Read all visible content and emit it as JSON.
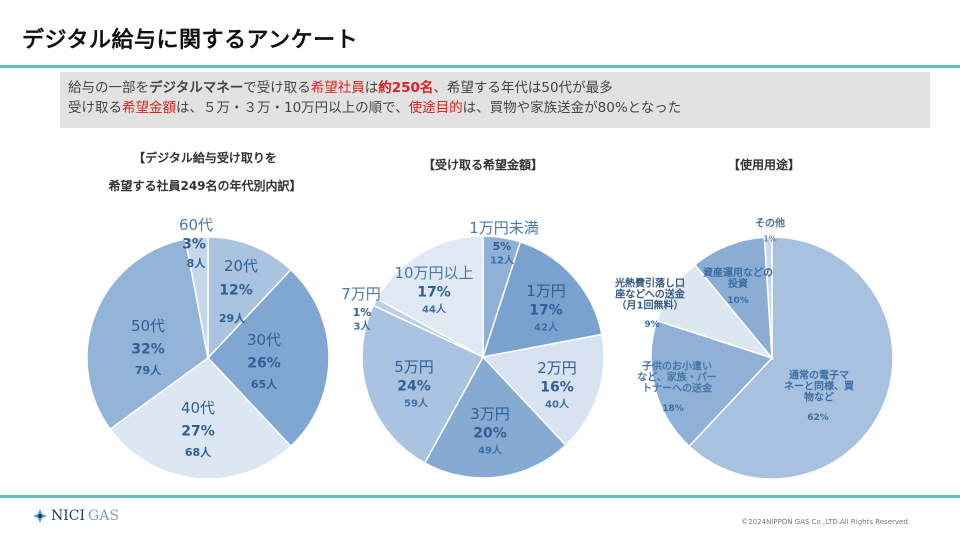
{
  "header": {
    "title": "デジタル給与に関するアンケート"
  },
  "summary": {
    "line1": [
      {
        "text": "給与の一部を",
        "style": ""
      },
      {
        "text": "デジタルマネー",
        "style": "bold"
      },
      {
        "text": "で受け取る",
        "style": ""
      },
      {
        "text": "希望社員",
        "style": "red"
      },
      {
        "text": "は",
        "style": ""
      },
      {
        "text": "約250名",
        "style": "red bold"
      },
      {
        "text": "、希望する年代は50代が最多",
        "style": ""
      }
    ],
    "line2": [
      {
        "text": "受け取る",
        "style": ""
      },
      {
        "text": "希望金額",
        "style": "red"
      },
      {
        "text": "は、５万・３万・10万円以上の順で、",
        "style": ""
      },
      {
        "text": "使途目的",
        "style": "red"
      },
      {
        "text": "は、買物や家族送金が80%となった",
        "style": ""
      }
    ]
  },
  "chart_data": [
    {
      "type": "pie",
      "title": [
        "【デジタル給与受け取りを",
        "希望する社員249名の年代別内訳】"
      ],
      "count_unit": "人",
      "slices": [
        {
          "label": "20代",
          "percent": 12,
          "count": 29,
          "color": "#a9c3e0"
        },
        {
          "label": "30代",
          "percent": 26,
          "count": 65,
          "color": "#80a7d1"
        },
        {
          "label": "40代",
          "percent": 27,
          "count": 68,
          "color": "#dce7f3"
        },
        {
          "label": "50代",
          "percent": 32,
          "count": 79,
          "color": "#93b4d9"
        },
        {
          "label": "60代",
          "percent": 3,
          "count": 8,
          "color": "#c6d7ea"
        }
      ]
    },
    {
      "type": "pie",
      "title": [
        "【受け取る希望金額】"
      ],
      "count_unit": "人",
      "slices": [
        {
          "label": "1万円未満",
          "percent": 5,
          "count": 12,
          "color": "#8fb1d7"
        },
        {
          "label": "1万円",
          "percent": 17,
          "count": 42,
          "color": "#7aa2cf"
        },
        {
          "label": "2万円",
          "percent": 16,
          "count": 40,
          "color": "#d7e3f0"
        },
        {
          "label": "3万円",
          "percent": 20,
          "count": 49,
          "color": "#87aad3"
        },
        {
          "label": "5万円",
          "percent": 24,
          "count": 59,
          "color": "#a9c3e0"
        },
        {
          "label": "7万円",
          "percent": 1,
          "count": 3,
          "color": "#bad0e7"
        },
        {
          "label": "10万円以上",
          "percent": 17,
          "count": 44,
          "color": "#dfe8f3"
        }
      ]
    },
    {
      "type": "pie",
      "title": [
        "【使用用途】"
      ],
      "slices": [
        {
          "label": "通常の電子マ\nネーと同様、買\n物など",
          "percent": 62,
          "color": "#a7c1df"
        },
        {
          "label": "子供のお小遣い\nなど、家族・パー\nトナーへの送金",
          "percent": 18,
          "color": "#90b1d7"
        },
        {
          "label": "光熱費引落し口\n座などへの送金\n（月1回無料）",
          "percent": 9,
          "color": "#dde7f2"
        },
        {
          "label": "資産運用などの\n投資",
          "percent": 10,
          "color": "#8badd4"
        },
        {
          "label": "その他",
          "percent": 1,
          "color": "#c9d9eb"
        }
      ]
    }
  ],
  "footer": {
    "logo_text": "NICI",
    "logo_text_2": "GAS",
    "copyright": "©2024NIPPON GAS Co.,LTD.All Rights Reserved."
  },
  "colors": {
    "accent_rule": "#62bfba",
    "highlight": "#e02020",
    "label_text": "#2f5f96"
  }
}
